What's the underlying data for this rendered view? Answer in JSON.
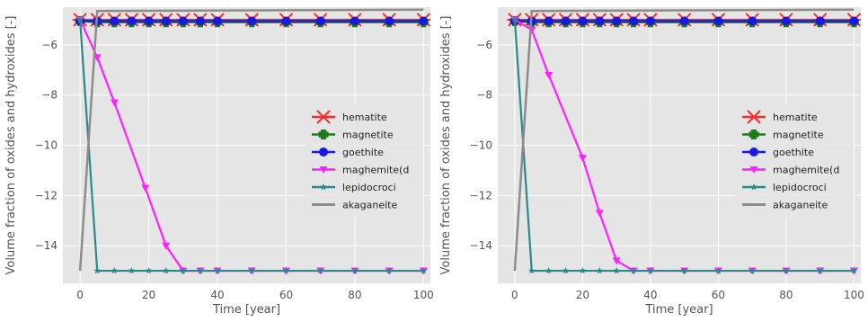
{
  "chart_data": [
    {
      "type": "line",
      "xlabel": "Time [year]",
      "ylabel": "Volume fraction of oxides and hydroxides [-]",
      "xlim": [
        -5,
        102
      ],
      "ylim": [
        -15.5,
        -4.5
      ],
      "xticks": [
        "0",
        "20",
        "40",
        "60",
        "80",
        "100"
      ],
      "yticks": [
        "-6",
        "-8",
        "-10",
        "-12",
        "-14"
      ],
      "grid": true,
      "legend_placement": "center-right",
      "series": [
        {
          "name": "hematite",
          "color": "#ff2a2a",
          "marker": "x",
          "x": [
            0,
            5,
            10,
            15,
            20,
            25,
            30,
            35,
            40,
            50,
            60,
            70,
            80,
            90,
            100
          ],
          "y": [
            -5,
            -5,
            -5,
            -5,
            -5,
            -5,
            -5,
            -5,
            -5,
            -5,
            -5,
            -5,
            -5,
            -5,
            -5
          ]
        },
        {
          "name": "magnetite",
          "color": "#1f7a1f",
          "marker": "plus",
          "x": [
            0,
            5,
            10,
            15,
            20,
            25,
            30,
            35,
            40,
            50,
            60,
            70,
            80,
            90,
            100
          ],
          "y": [
            -5.05,
            -5.1,
            -5.1,
            -5.1,
            -5.1,
            -5.1,
            -5.1,
            -5.1,
            -5.1,
            -5.1,
            -5.1,
            -5.1,
            -5.1,
            -5.1,
            -5.1
          ]
        },
        {
          "name": "goethite",
          "color": "#1a1adf",
          "marker": "circle",
          "x": [
            0,
            5,
            10,
            15,
            20,
            25,
            30,
            35,
            40,
            50,
            60,
            70,
            80,
            90,
            100
          ],
          "y": [
            -5.05,
            -5.05,
            -5.05,
            -5.05,
            -5.05,
            -5.05,
            -5.05,
            -5.05,
            -5.05,
            -5.05,
            -5.05,
            -5.05,
            -5.05,
            -5.05,
            -5.05
          ]
        },
        {
          "name": "maghemite(d",
          "color": "#ff22ff",
          "marker": "triangle-down",
          "x": [
            0,
            5,
            10,
            19,
            25,
            30,
            35,
            40,
            50,
            60,
            70,
            80,
            90,
            100
          ],
          "y": [
            -5,
            -6.5,
            -8.3,
            -11.7,
            -14,
            -15,
            -15,
            -15,
            -15,
            -15,
            -15,
            -15,
            -15,
            -15
          ]
        },
        {
          "name": "lepidocroci",
          "color": "#2a8a8a",
          "marker": "star",
          "x": [
            0,
            5,
            10,
            15,
            20,
            25,
            30,
            35,
            40,
            50,
            60,
            70,
            80,
            90,
            100
          ],
          "y": [
            -5,
            -15,
            -15,
            -15,
            -15,
            -15,
            -15,
            -15,
            -15,
            -15,
            -15,
            -15,
            -15,
            -15,
            -15
          ]
        },
        {
          "name": "akaganeite",
          "color": "#8c8c8c",
          "marker": "none",
          "x": [
            0,
            5,
            100
          ],
          "y": [
            -15,
            -4.65,
            -4.6
          ]
        }
      ]
    },
    {
      "type": "line",
      "xlabel": "Time [year]",
      "ylabel": "Volume fraction of oxides and hydroxides [-]",
      "xlim": [
        -5,
        102
      ],
      "ylim": [
        -15.5,
        -4.5
      ],
      "xticks": [
        "0",
        "20",
        "40",
        "60",
        "80",
        "100"
      ],
      "yticks": [
        "-6",
        "-8",
        "-10",
        "-12",
        "-14"
      ],
      "grid": true,
      "legend_placement": "center-right",
      "series": [
        {
          "name": "hematite",
          "color": "#ff2a2a",
          "marker": "x",
          "x": [
            0,
            5,
            10,
            15,
            20,
            25,
            30,
            35,
            40,
            50,
            60,
            70,
            80,
            90,
            100
          ],
          "y": [
            -5,
            -5,
            -5,
            -5,
            -5,
            -5,
            -5,
            -5,
            -5,
            -5,
            -5,
            -5,
            -5,
            -5,
            -5
          ]
        },
        {
          "name": "magnetite",
          "color": "#1f7a1f",
          "marker": "plus",
          "x": [
            0,
            5,
            10,
            15,
            20,
            25,
            30,
            35,
            40,
            50,
            60,
            70,
            80,
            90,
            100
          ],
          "y": [
            -5.05,
            -5.1,
            -5.1,
            -5.1,
            -5.1,
            -5.1,
            -5.1,
            -5.1,
            -5.1,
            -5.1,
            -5.1,
            -5.1,
            -5.1,
            -5.1,
            -5.1
          ]
        },
        {
          "name": "goethite",
          "color": "#1a1adf",
          "marker": "circle",
          "x": [
            0,
            5,
            10,
            15,
            20,
            25,
            30,
            35,
            40,
            50,
            60,
            70,
            80,
            90,
            100
          ],
          "y": [
            -5.05,
            -5.05,
            -5.05,
            -5.05,
            -5.05,
            -5.05,
            -5.05,
            -5.05,
            -5.05,
            -5.05,
            -5.05,
            -5.05,
            -5.05,
            -5.05,
            -5.05
          ]
        },
        {
          "name": "maghemite(d",
          "color": "#ff22ff",
          "marker": "triangle-down",
          "x": [
            0,
            5,
            10,
            20,
            25,
            30,
            35,
            40,
            50,
            60,
            70,
            80,
            90,
            100
          ],
          "y": [
            -5,
            -5.4,
            -7.2,
            -10.5,
            -12.7,
            -14.6,
            -15,
            -15,
            -15,
            -15,
            -15,
            -15,
            -15,
            -15
          ]
        },
        {
          "name": "lepidocroci",
          "color": "#2a8a8a",
          "marker": "star",
          "x": [
            0,
            5,
            10,
            15,
            20,
            25,
            30,
            35,
            40,
            50,
            60,
            70,
            80,
            90,
            100
          ],
          "y": [
            -5,
            -15,
            -15,
            -15,
            -15,
            -15,
            -15,
            -15,
            -15,
            -15,
            -15,
            -15,
            -15,
            -15,
            -15
          ]
        },
        {
          "name": "akaganeite",
          "color": "#8c8c8c",
          "marker": "none",
          "x": [
            0,
            5,
            100
          ],
          "y": [
            -15,
            -4.65,
            -4.6
          ]
        }
      ]
    }
  ]
}
